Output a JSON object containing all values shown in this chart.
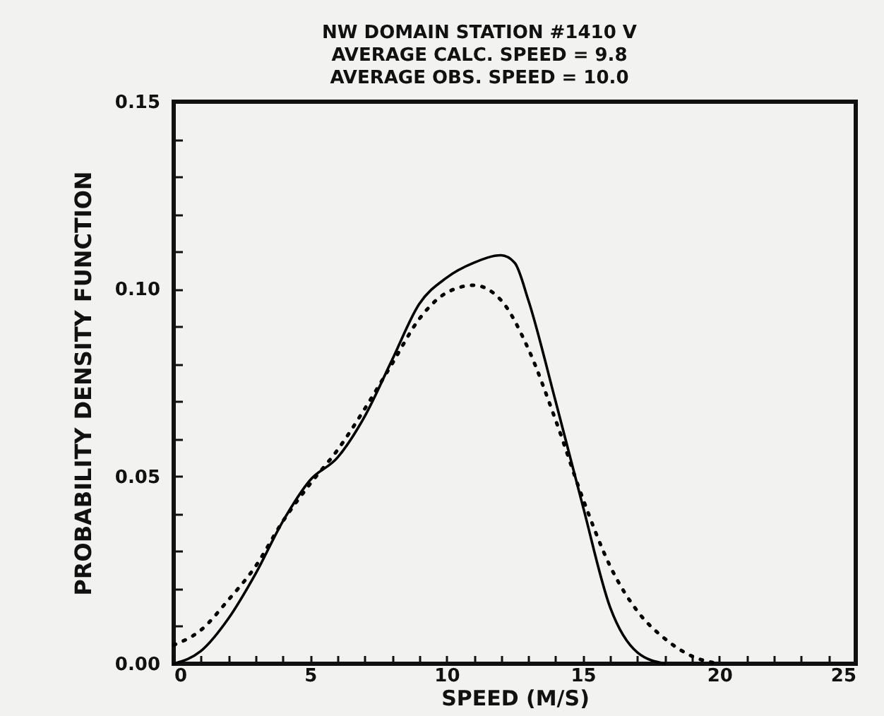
{
  "chart_data": {
    "type": "line",
    "title": [
      "NW DOMAIN  STATION #1410 V",
      "AVERAGE CALC. SPEED =  9.8",
      "AVERAGE OBS. SPEED =  10.0"
    ],
    "xlabel": "SPEED (M/S)",
    "ylabel": "PROBABILITY DENSITY FUNCTION",
    "xlim": [
      0,
      25
    ],
    "ylim": [
      0,
      0.15
    ],
    "xticks": [
      0,
      {
        "value": 1,
        "label": null
      },
      {
        "value": 2,
        "label": null
      },
      {
        "value": 3,
        "label": null
      },
      {
        "value": 4,
        "label": null
      },
      5,
      {
        "value": 6,
        "label": null
      },
      {
        "value": 7,
        "label": null
      },
      {
        "value": 8,
        "label": null
      },
      {
        "value": 9,
        "label": null
      },
      10,
      {
        "value": 11,
        "label": null
      },
      {
        "value": 12,
        "label": null
      },
      {
        "value": 13,
        "label": null
      },
      {
        "value": 14,
        "label": null
      },
      15,
      {
        "value": 16,
        "label": null
      },
      {
        "value": 17,
        "label": null
      },
      {
        "value": 18,
        "label": null
      },
      {
        "value": 19,
        "label": null
      },
      20,
      {
        "value": 21,
        "label": null
      },
      {
        "value": 22,
        "label": null
      },
      {
        "value": 23,
        "label": null
      },
      {
        "value": 24,
        "label": null
      },
      25
    ],
    "yticks": [
      {
        "value": 0,
        "label": "0.00"
      },
      {
        "value": 0.01,
        "label": null
      },
      {
        "value": 0.02,
        "label": null
      },
      {
        "value": 0.03,
        "label": null
      },
      {
        "value": 0.04,
        "label": null
      },
      0.05,
      {
        "value": 0.06,
        "label": null
      },
      {
        "value": 0.07,
        "label": null
      },
      {
        "value": 0.08,
        "label": null
      },
      {
        "value": 0.09,
        "label": null
      },
      {
        "value": 0.1,
        "label": "0.10"
      },
      {
        "value": 0.11,
        "label": null
      },
      {
        "value": 0.12,
        "label": null
      },
      {
        "value": 0.13,
        "label": null
      },
      {
        "value": 0.14,
        "label": null
      },
      0.15
    ],
    "grid": false,
    "legend": false,
    "marker": "none",
    "series": [
      {
        "color": "#000000",
        "line_style": "solid",
        "x": [
          0,
          1,
          2,
          3,
          4,
          5,
          6,
          7,
          8,
          9,
          10,
          11,
          12,
          12.5,
          13,
          14,
          15,
          16,
          17,
          18
        ],
        "values": [
          0,
          0.0034,
          0.012,
          0.024,
          0.038,
          0.049,
          0.055,
          0.066,
          0.081,
          0.096,
          0.103,
          0.107,
          0.109,
          0.107,
          0.097,
          0.07,
          0.042,
          0.015,
          0.003,
          0
        ]
      },
      {
        "color": "#000000",
        "line_style": "dotted",
        "x": [
          0,
          1,
          2,
          3,
          4,
          5,
          6,
          7,
          8,
          9,
          10,
          11,
          12,
          13,
          14,
          15,
          16,
          17,
          18,
          19,
          20
        ],
        "values": [
          0.005,
          0.009,
          0.017,
          0.026,
          0.038,
          0.048,
          0.057,
          0.068,
          0.08,
          0.092,
          0.099,
          0.101,
          0.097,
          0.084,
          0.065,
          0.044,
          0.026,
          0.014,
          0.0067,
          0.002,
          0
        ]
      }
    ]
  }
}
